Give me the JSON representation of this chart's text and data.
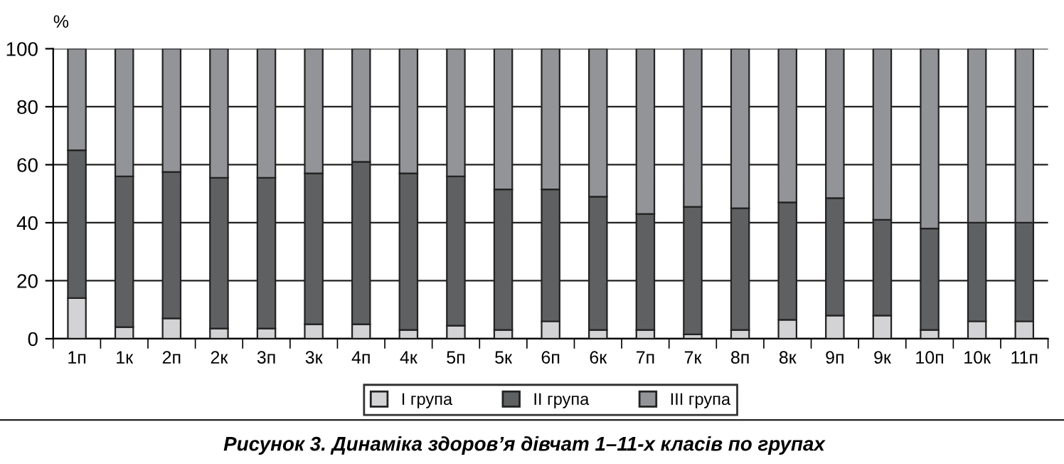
{
  "chart_data": {
    "type": "bar",
    "stacked": true,
    "ylabel": "%",
    "ylim": [
      0,
      100
    ],
    "yticks": [
      0,
      20,
      40,
      60,
      80,
      100
    ],
    "grid": "y",
    "legend": "bottom",
    "categories": [
      "1п",
      "1к",
      "2п",
      "2к",
      "3п",
      "3к",
      "4п",
      "4к",
      "5п",
      "5к",
      "6п",
      "6к",
      "7п",
      "7к",
      "8п",
      "8к",
      "9п",
      "9к",
      "10п",
      "10к",
      "11п"
    ],
    "series": [
      {
        "name": "I група",
        "color": "#d3d3d5",
        "values": [
          14,
          4,
          7,
          3.5,
          3.5,
          5,
          5,
          3,
          4.5,
          3,
          6,
          3,
          3,
          1.5,
          3,
          6.5,
          8,
          8,
          3,
          6,
          6
        ]
      },
      {
        "name": "II група",
        "color": "#5f6062",
        "values": [
          51,
          52,
          50.5,
          52,
          52,
          52,
          56,
          54,
          51.5,
          48.5,
          45.5,
          46,
          40,
          44,
          42,
          40.5,
          40.5,
          33,
          35,
          34,
          34
        ]
      },
      {
        "name": "III група",
        "color": "#939497",
        "values": [
          35,
          44,
          42.5,
          44.5,
          44.5,
          43,
          39,
          43,
          44,
          48.5,
          48.5,
          51,
          57,
          54.5,
          55,
          53,
          51.5,
          59,
          62,
          60,
          60
        ]
      }
    ],
    "annotations": [
      "Рисунок 3. Динаміка здоров’я дівчат 1–11-х класів по групах"
    ]
  }
}
